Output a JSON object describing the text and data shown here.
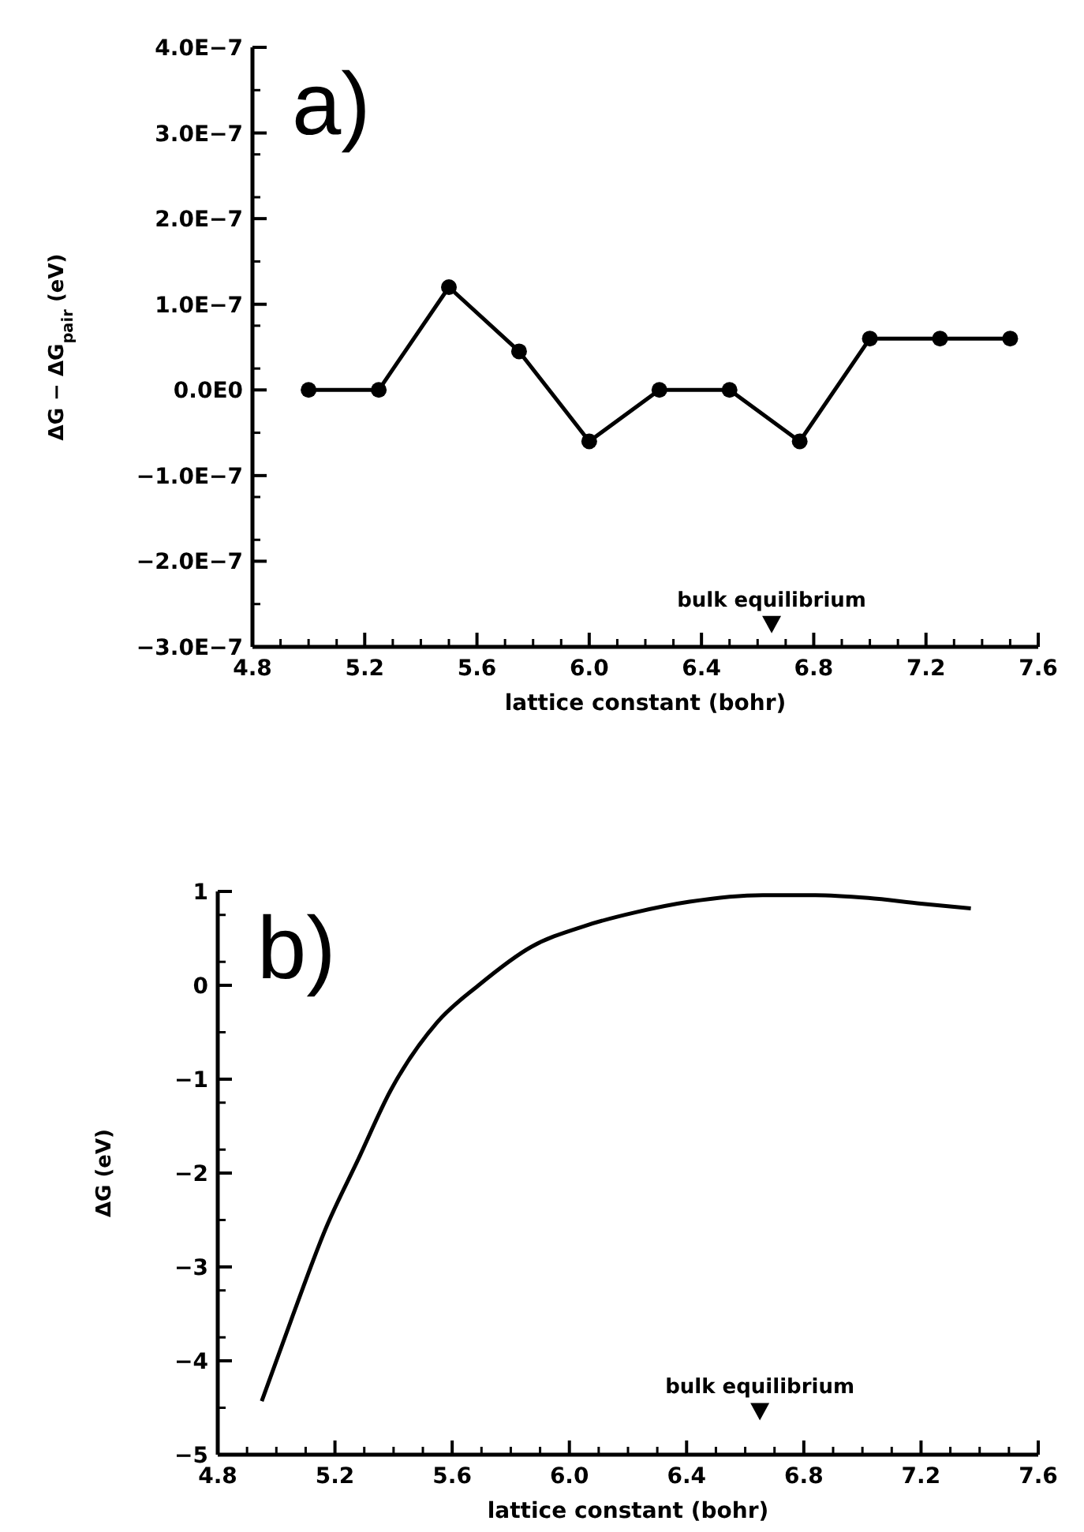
{
  "chart_data": [
    {
      "type": "line",
      "xlabel": "lattice constant (bohr)",
      "ylabel": "ΔG − ΔG$_{pair}$ (eV)",
      "marker": "circle",
      "line_style": "solid",
      "x": [
        5.0,
        5.25,
        5.5,
        5.75,
        6.0,
        6.25,
        6.5,
        6.75,
        7.0,
        7.25,
        7.5
      ],
      "series": [
        {
          "color": "#000000",
          "values": [
            0,
            0,
            1.2e-07,
            4.5e-08,
            -6e-08,
            0,
            0,
            -6e-08,
            6e-08,
            6e-08,
            6e-08
          ]
        }
      ],
      "xlim": [
        4.8,
        7.6
      ],
      "ylim": [
        -3e-07,
        4e-07
      ],
      "xticks": [
        {
          "value": 4.8,
          "label": "4.8"
        },
        {
          "value": 5.2,
          "label": "5.2"
        },
        {
          "value": 5.6,
          "label": "5.6"
        },
        {
          "value": 6,
          "label": "6.0"
        },
        {
          "value": 6.4,
          "label": "6.4"
        },
        {
          "value": 6.8,
          "label": "6.8"
        },
        {
          "value": 7.2,
          "label": "7.2"
        },
        {
          "value": 7.6,
          "label": "7.6"
        }
      ],
      "yticks": [
        {
          "value": -3e-07,
          "label": "−3.0E−7"
        },
        {
          "value": -2e-07,
          "label": "−2.0E−7"
        },
        {
          "value": -1e-07,
          "label": "−1.0E−7"
        },
        {
          "value": 0,
          "label": "0.0E0"
        },
        {
          "value": 1e-07,
          "label": "1.0E−7"
        },
        {
          "value": 2e-07,
          "label": "2.0E−7"
        },
        {
          "value": 3e-07,
          "label": "3.0E−7"
        },
        {
          "value": 4e-07,
          "label": "4.0E−7"
        }
      ],
      "annotations": [
        "a)",
        {
          "text": "bulk equilibrium",
          "x": 6.65,
          "y": -2.75e-07
        }
      ]
    },
    {
      "type": "line",
      "xlabel": "lattice constant (bohr)",
      "ylabel": "ΔG (eV)",
      "marker": "none",
      "line_style": "solid",
      "x": [
        4.95,
        5.05,
        5.17,
        5.28,
        5.39,
        5.55,
        5.69,
        5.87,
        6.05,
        6.23,
        6.41,
        6.66,
        6.84,
        7.02,
        7.2,
        7.37
      ],
      "series": [
        {
          "color": "#000000",
          "values": [
            -4.43,
            -3.57,
            -2.58,
            -1.85,
            -1.12,
            -0.39,
            0.0,
            0.41,
            0.63,
            0.78,
            0.89,
            0.96,
            0.96,
            0.93,
            0.87,
            0.82
          ]
        }
      ],
      "xlim": [
        4.8,
        7.6
      ],
      "ylim": [
        -5,
        1
      ],
      "xticks": [
        {
          "value": 4.8,
          "label": "4.8"
        },
        {
          "value": 5.2,
          "label": "5.2"
        },
        {
          "value": 5.6,
          "label": "5.6"
        },
        {
          "value": 6,
          "label": "6.0"
        },
        {
          "value": 6.4,
          "label": "6.4"
        },
        {
          "value": 6.8,
          "label": "6.8"
        },
        {
          "value": 7.2,
          "label": "7.2"
        },
        {
          "value": 7.6,
          "label": "7.6"
        }
      ],
      "yticks": [
        -5,
        -4,
        -3,
        -2,
        -1,
        0,
        1
      ],
      "annotations": [
        "b)",
        {
          "text": "bulk equilibrium",
          "x": 6.65,
          "y": -4.55
        }
      ]
    }
  ]
}
